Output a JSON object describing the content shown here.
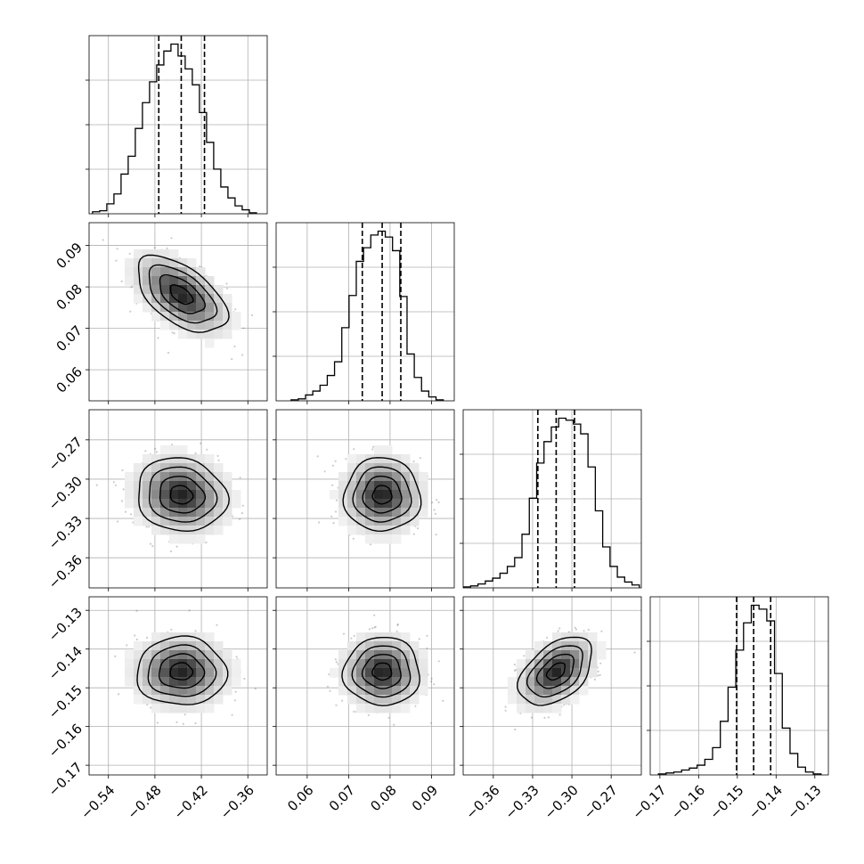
{
  "chart_data": {
    "type": "corner",
    "parameters": [
      "",
      "",
      "",
      ""
    ],
    "ranges": [
      [
        -0.565,
        -0.335
      ],
      [
        0.0525,
        0.0955
      ],
      [
        -0.383,
        -0.247
      ],
      [
        -0.1725,
        -0.1265
      ]
    ],
    "ticks": [
      [
        -0.54,
        -0.48,
        -0.42,
        -0.36
      ],
      [
        0.06,
        0.07,
        0.08,
        0.09
      ],
      [
        -0.36,
        -0.33,
        -0.3,
        -0.27
      ],
      [
        -0.17,
        -0.16,
        -0.15,
        -0.14,
        -0.13
      ]
    ],
    "tick_labels": [
      [
        "−0.54",
        "−0.48",
        "−0.42",
        "−0.36"
      ],
      [
        "0.06",
        "0.07",
        "0.08",
        "0.09"
      ],
      [
        "−0.36",
        "−0.33",
        "−0.30",
        "−0.27"
      ],
      [
        "−0.17",
        "−0.16",
        "−0.15",
        "−0.14",
        "−0.13"
      ]
    ],
    "quantiles": [
      [
        -0.475,
        -0.446,
        -0.416
      ],
      [
        0.0733,
        0.0781,
        0.0826
      ],
      [
        -0.326,
        -0.312,
        -0.298
      ],
      [
        -0.1502,
        -0.1458,
        -0.1414
      ]
    ],
    "histograms": [
      {
        "bin_edges": [
          -0.5605,
          -0.5513,
          -0.5421,
          -0.5329,
          -0.5237,
          -0.5145,
          -0.5053,
          -0.4961,
          -0.4869,
          -0.4777,
          -0.4685,
          -0.4593,
          -0.4501,
          -0.4409,
          -0.4317,
          -0.4225,
          -0.4133,
          -0.4041,
          -0.3949,
          -0.3857,
          -0.3765,
          -0.3673,
          -0.3581,
          -0.3489
        ],
        "counts": [
          2,
          3,
          10,
          20,
          40,
          58,
          86,
          112,
          133,
          150,
          164,
          171,
          159,
          146,
          130,
          102,
          72,
          45,
          27,
          16,
          8,
          4,
          1
        ]
      },
      {
        "bin_edges": [
          0.0561,
          0.05785,
          0.0596,
          0.06135,
          0.0631,
          0.06485,
          0.0666,
          0.06835,
          0.0701,
          0.07185,
          0.0736,
          0.07535,
          0.0771,
          0.07885,
          0.0806,
          0.08235,
          0.0841,
          0.08585,
          0.0876,
          0.08935,
          0.0911,
          0.09285
        ],
        "counts": [
          1,
          2,
          6,
          10,
          16,
          26,
          40,
          75,
          108,
          143,
          157,
          170,
          174,
          168,
          154,
          107,
          48,
          24,
          10,
          4,
          1
        ]
      },
      {
        "bin_edges": [
          -0.3829,
          -0.3773,
          -0.3717,
          -0.3661,
          -0.3605,
          -0.3549,
          -0.3493,
          -0.3437,
          -0.3381,
          -0.3325,
          -0.3269,
          -0.3213,
          -0.3157,
          -0.3101,
          -0.3045,
          -0.2989,
          -0.2933,
          -0.2877,
          -0.2821,
          -0.2765,
          -0.2709,
          -0.2653,
          -0.2597,
          -0.2541,
          -0.2485
        ],
        "counts": [
          1,
          2,
          4,
          7,
          10,
          15,
          22,
          31,
          55,
          92,
          128,
          150,
          165,
          174,
          172,
          168,
          158,
          124,
          79,
          42,
          22,
          11,
          6,
          3
        ]
      },
      {
        "bin_edges": [
          -0.1704,
          -0.1684,
          -0.1664,
          -0.1644,
          -0.1624,
          -0.1604,
          -0.1584,
          -0.1564,
          -0.1544,
          -0.1524,
          -0.1504,
          -0.1484,
          -0.1464,
          -0.1444,
          -0.1424,
          -0.1404,
          -0.1384,
          -0.1364,
          -0.1344,
          -0.1324,
          -0.1304,
          -0.1284
        ],
        "counts": [
          1,
          2,
          3,
          5,
          7,
          10,
          16,
          28,
          55,
          90,
          128,
          156,
          174,
          170,
          158,
          104,
          48,
          22,
          8,
          3,
          1
        ]
      }
    ],
    "posterior": {
      "means": [
        -0.446,
        0.0781,
        -0.312,
        -0.1458
      ],
      "sds": [
        0.029,
        0.0046,
        0.014,
        0.0044
      ],
      "correlations": [
        [
          1,
          -0.55,
          -0.1,
          0.0
        ],
        [
          -0.55,
          1,
          0.0,
          0.0
        ],
        [
          -0.1,
          0.0,
          1,
          0.45
        ],
        [
          0.0,
          0.0,
          0.45,
          1
        ]
      ],
      "contour_levels_sigma": [
        0.5,
        1.0,
        1.5,
        2.0
      ]
    }
  }
}
